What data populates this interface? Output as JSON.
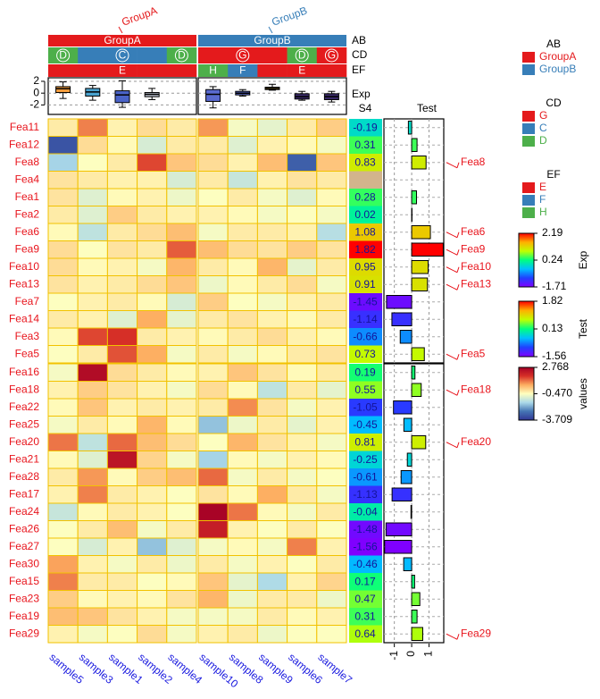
{
  "chart_data": {
    "type": "heatmap",
    "column_groups": [
      {
        "name": "GroupA",
        "samples": [
          "sample5",
          "sample3",
          "sample1",
          "sample2",
          "sample4"
        ]
      },
      {
        "name": "GroupB",
        "samples": [
          "sample10",
          "sample8",
          "sample9",
          "sample6",
          "sample7"
        ]
      }
    ],
    "row_slices": [
      {
        "rows": [
          "Fea11",
          "Fea12",
          "Fea8",
          "Fea4",
          "Fea1",
          "Fea2",
          "Fea6",
          "Fea9",
          "Fea10",
          "Fea13",
          "Fea7",
          "Fea14",
          "Fea3",
          "Fea5"
        ],
        "values": [
          [
            -0.2,
            1.0,
            -0.3,
            0.0,
            -0.2,
            0.8,
            -0.6,
            -0.8,
            -0.2,
            0.2
          ],
          [
            -3.2,
            0.0,
            -0.4,
            -1.0,
            -0.2,
            -0.2,
            -0.9,
            -0.3,
            -0.4,
            -0.6
          ],
          [
            -1.6,
            -0.5,
            -0.2,
            1.5,
            0.3,
            0.0,
            -0.3,
            0.4,
            -3.0,
            0.3
          ],
          [
            -0.1,
            -0.2,
            -0.3,
            -0.3,
            -1.0,
            -0.2,
            -1.2,
            -0.3,
            -0.1,
            -0.2
          ],
          [
            -0.1,
            -0.9,
            -0.4,
            -0.3,
            -0.7,
            -0.5,
            -0.2,
            -0.6,
            -0.9,
            -0.4
          ],
          [
            -0.2,
            -0.9,
            0.2,
            -0.2,
            -0.3,
            -0.3,
            -0.4,
            -0.6,
            -0.5,
            -0.6
          ],
          [
            -0.4,
            -1.3,
            -0.2,
            0.0,
            0.4,
            -0.6,
            -0.2,
            -0.2,
            -0.3,
            -1.4
          ],
          [
            0.0,
            -0.5,
            -0.1,
            -0.2,
            1.3,
            0.4,
            0.0,
            -0.1,
            0.2,
            -0.1
          ],
          [
            0.0,
            -0.4,
            -0.3,
            -0.6,
            0.5,
            -0.2,
            -0.4,
            0.5,
            -0.8,
            -0.2
          ],
          [
            -0.1,
            -0.3,
            -0.2,
            0.0,
            0.3,
            -0.7,
            -0.4,
            -0.2,
            0.0,
            -0.6
          ],
          [
            -0.5,
            -0.3,
            -0.2,
            -0.4,
            -1.0,
            0.2,
            -0.5,
            -0.6,
            -0.3,
            -0.2
          ],
          [
            -0.2,
            -0.3,
            -0.9,
            0.6,
            -0.8,
            -0.2,
            -0.1,
            -0.3,
            -0.4,
            -0.2
          ],
          [
            -0.4,
            1.5,
            1.7,
            -0.2,
            -0.3,
            -0.4,
            -0.2,
            0.0,
            -0.3,
            -0.4
          ],
          [
            -0.5,
            -0.2,
            1.4,
            0.6,
            -0.6,
            -0.2,
            -0.6,
            -0.4,
            -0.2,
            -0.1
          ]
        ],
        "test": [
          -0.19,
          0.31,
          0.83,
          null,
          0.28,
          0.02,
          1.08,
          1.82,
          0.95,
          0.91,
          -1.45,
          -1.14,
          -0.66,
          0.73
        ]
      },
      {
        "rows": [
          "Fea16",
          "Fea18",
          "Fea22",
          "Fea25",
          "Fea20",
          "Fea21",
          "Fea28",
          "Fea17",
          "Fea24",
          "Fea26",
          "Fea27",
          "Fea30",
          "Fea15",
          "Fea23",
          "Fea19",
          "Fea29"
        ],
        "values": [
          [
            -0.6,
            2.5,
            0.0,
            -0.2,
            -0.4,
            -0.3,
            0.3,
            -0.1,
            -0.4,
            -0.2
          ],
          [
            -0.3,
            0.2,
            -0.1,
            -0.3,
            -0.6,
            0.0,
            -0.4,
            -1.3,
            -0.2,
            -0.8
          ],
          [
            -0.4,
            0.3,
            -0.3,
            -0.2,
            -0.3,
            -0.2,
            0.9,
            -0.1,
            -0.6,
            -0.3
          ],
          [
            -0.6,
            -0.2,
            -0.4,
            0.5,
            -0.4,
            -1.8,
            -0.7,
            -0.2,
            -0.8,
            -0.3
          ],
          [
            1.1,
            -1.3,
            1.2,
            0.4,
            0.0,
            -0.5,
            0.5,
            -0.1,
            -0.3,
            -0.6
          ],
          [
            -0.4,
            -0.9,
            2.3,
            0.1,
            -0.6,
            -1.6,
            -0.4,
            -0.6,
            -0.3,
            -0.4
          ],
          [
            -0.2,
            0.8,
            -0.4,
            0.2,
            0.4,
            1.2,
            -0.6,
            -0.2,
            -0.6,
            -0.5
          ],
          [
            -0.3,
            1.0,
            -0.2,
            -0.3,
            -0.5,
            -0.1,
            -0.4,
            0.6,
            -0.2,
            -0.6
          ],
          [
            -1.2,
            -0.4,
            -0.2,
            -0.3,
            -0.5,
            2.7,
            1.1,
            -0.4,
            -0.6,
            -0.2
          ],
          [
            -0.5,
            -0.2,
            0.4,
            -0.6,
            -0.2,
            2.1,
            -0.3,
            -0.5,
            -0.2,
            -0.5
          ],
          [
            -0.5,
            -1.0,
            -0.3,
            -1.8,
            -0.9,
            -0.6,
            -0.4,
            -0.6,
            1.0,
            -0.3
          ],
          [
            0.7,
            -0.3,
            -0.6,
            -0.2,
            -0.7,
            -0.2,
            -0.6,
            -0.3,
            -0.5,
            -0.2
          ],
          [
            1.0,
            -0.2,
            -0.2,
            -0.5,
            -0.4,
            0.3,
            -0.8,
            -1.5,
            -0.3,
            0.1
          ],
          [
            0.2,
            -0.4,
            -0.3,
            -0.4,
            -0.1,
            0.5,
            -0.7,
            -0.2,
            -0.2,
            -0.7
          ],
          [
            0.4,
            0.3,
            -0.1,
            -0.3,
            -0.6,
            -0.6,
            -0.6,
            -0.2,
            -0.4,
            -0.3
          ],
          [
            -0.3,
            -0.6,
            -0.5,
            0.0,
            -0.6,
            -0.3,
            -0.2,
            -0.7,
            -0.5,
            -0.5
          ]
        ],
        "test": [
          0.19,
          0.55,
          -1.05,
          -0.45,
          0.81,
          -0.25,
          -0.61,
          -1.13,
          -0.04,
          -1.48,
          -1.56,
          -0.46,
          0.17,
          0.47,
          0.31,
          0.64
        ]
      }
    ],
    "top_annotations": [
      {
        "name": "AB"
      },
      {
        "name": "CD",
        "values": [
          "D",
          "C",
          "C",
          "C",
          "D",
          "G",
          "G",
          "G",
          "D",
          "G"
        ]
      },
      {
        "name": "EF",
        "values": [
          "E",
          "E",
          "E",
          "E",
          "E",
          "H",
          "F",
          "E",
          "E",
          "E"
        ]
      },
      {
        "name": "Exp",
        "ylim": [
          -3.6,
          2.6
        ],
        "yticks": [
          -2,
          0,
          2
        ],
        "min": [
          -0.9,
          -1.2,
          -2.4,
          -1.1,
          null,
          -2.5,
          -0.5,
          0.5,
          -1.2,
          -1.5
        ],
        "q1": [
          0.1,
          -0.5,
          -1.6,
          -0.6,
          null,
          -1.4,
          -0.3,
          0.6,
          -1.0,
          -1.1
        ],
        "median": [
          0.75,
          0.2,
          -0.3,
          -0.2,
          null,
          -0.2,
          0.0,
          0.8,
          -0.6,
          -0.6
        ],
        "q3": [
          1.1,
          0.8,
          0.4,
          0.1,
          null,
          0.6,
          0.3,
          1.0,
          -0.1,
          -0.1
        ],
        "max": [
          1.9,
          1.3,
          2.1,
          0.8,
          null,
          1.1,
          0.6,
          1.5,
          0.3,
          0.3
        ],
        "colors": [
          "#f39c3c",
          "#4aa3cf",
          "#4a63c8",
          "#b8bfcc",
          "#888888",
          "#5a6ad0",
          "#5566cc",
          "#e6c23a",
          "#3a2a6a",
          "#3a2a6a"
        ]
      }
    ],
    "row_annotation": {
      "name": "S4"
    },
    "test_panel": {
      "name": "Test",
      "xlim": [
        -1.6,
        1.85
      ],
      "xticks": [
        -1,
        0,
        1
      ]
    },
    "marked_rows": [
      "Fea8",
      "Fea6",
      "Fea9",
      "Fea10",
      "Fea13",
      "Fea5",
      "Fea18",
      "Fea20",
      "Fea29"
    ],
    "legends": [
      {
        "title": "AB",
        "items": [
          {
            "label": "GroupA",
            "color": "#e41a1c"
          },
          {
            "label": "GroupB",
            "color": "#377eb8"
          }
        ]
      },
      {
        "title": "CD",
        "items": [
          {
            "label": "G",
            "color": "#e41a1c"
          },
          {
            "label": "C",
            "color": "#377eb8"
          },
          {
            "label": "D",
            "color": "#4daf4a"
          }
        ]
      },
      {
        "title": "EF",
        "items": [
          {
            "label": "E",
            "color": "#e41a1c"
          },
          {
            "label": "F",
            "color": "#377eb8"
          },
          {
            "label": "H",
            "color": "#4daf4a"
          }
        ]
      }
    ],
    "colorbars": [
      {
        "title": "Exp",
        "ticks": [
          2.19,
          0.24,
          -1.71
        ],
        "colors": [
          "#7f00ff",
          "#2040ff",
          "#00c0ff",
          "#00ff80",
          "#c0ff00",
          "#ffb000",
          "#ff0000"
        ]
      },
      {
        "title": "Test",
        "ticks": [
          1.82,
          0.13,
          -1.56
        ],
        "colors": [
          "#7f00ff",
          "#2040ff",
          "#00c0ff",
          "#00ff80",
          "#c0ff00",
          "#ffb000",
          "#ff0000"
        ]
      },
      {
        "title": "values",
        "ticks": [
          2.768,
          {
            "value": -0.47,
            "label": "-0.470"
          },
          -3.709
        ],
        "colors": [
          "#313695",
          "#4575b4",
          "#abd9e9",
          "#ffffbf",
          "#fdae61",
          "#d73027",
          "#a50026"
        ]
      }
    ],
    "na_color": "#d2b48c",
    "cell_border": "#f2c200"
  }
}
